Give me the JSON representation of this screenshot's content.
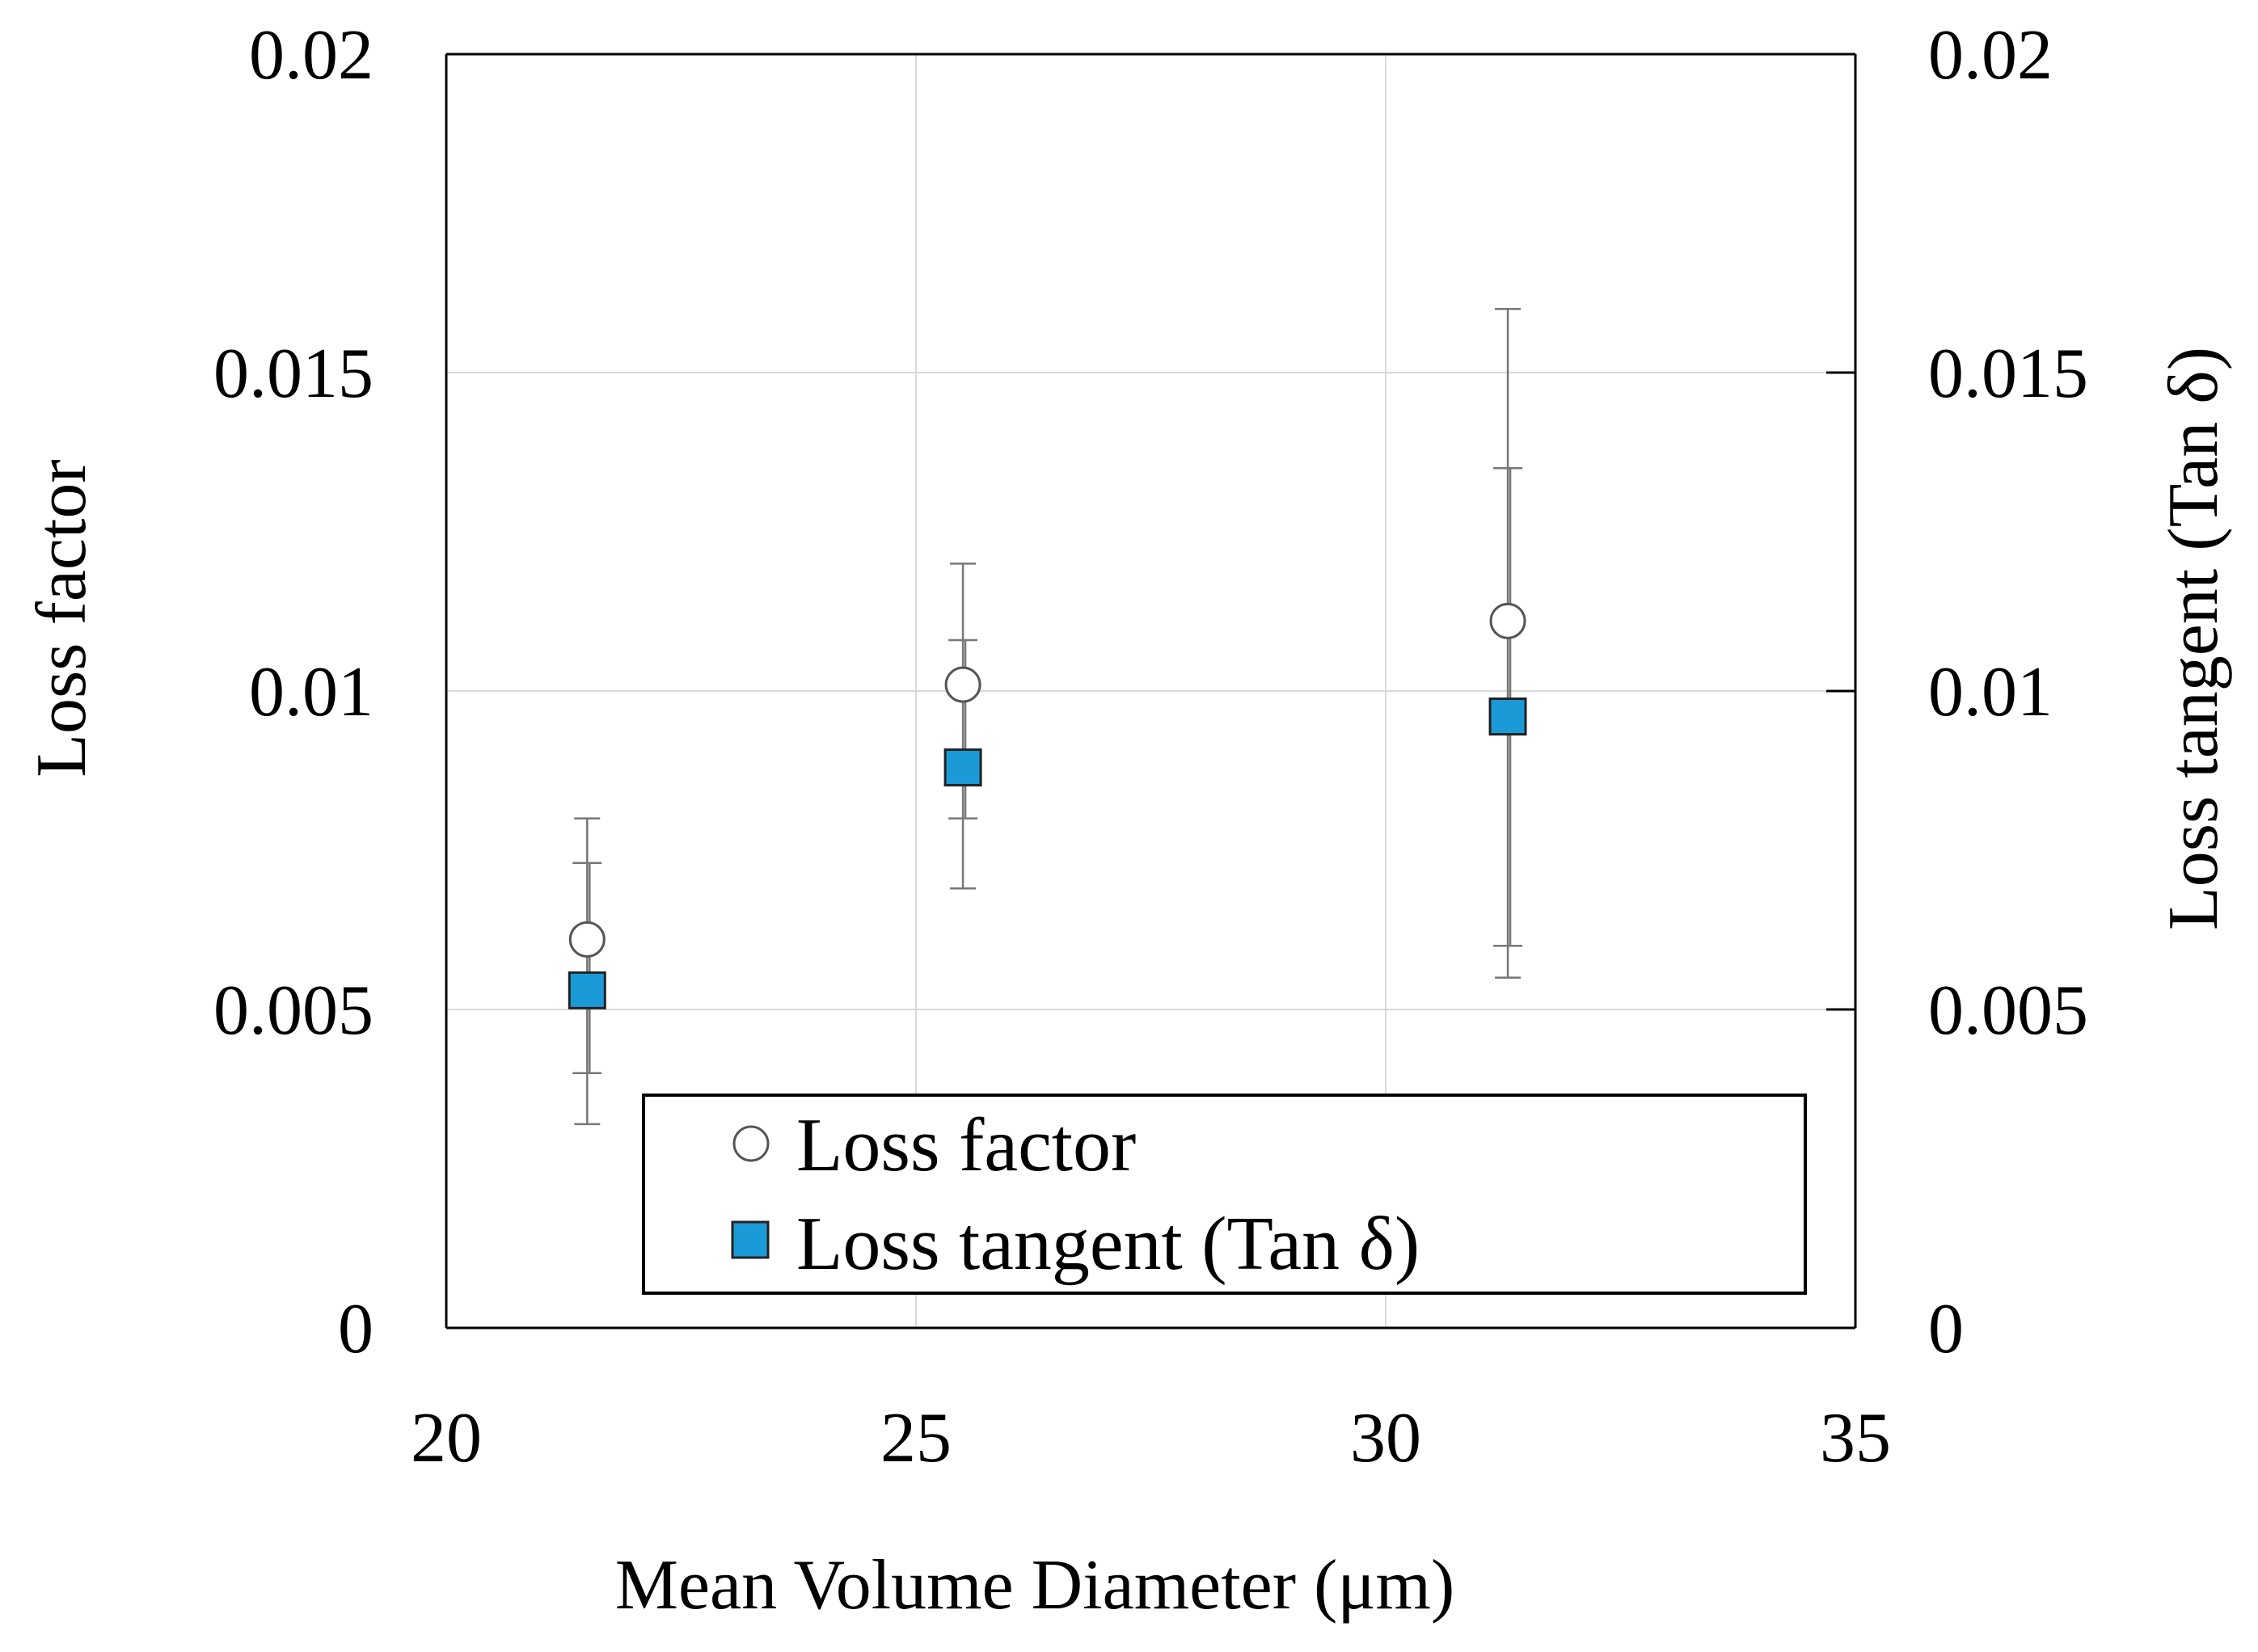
{
  "chart_data": {
    "type": "scatter",
    "title": "",
    "xlabel": "Mean Volume Diameter  (μm)",
    "ylabel": "Loss factor",
    "y2label": "Loss tangent  (Tan δ)",
    "xlim": [
      20,
      35
    ],
    "ylim": [
      0,
      0.02
    ],
    "y2lim": [
      0,
      0.02
    ],
    "xticks": [
      20,
      25,
      30,
      35
    ],
    "xtick_labels": [
      "20",
      "25",
      "30",
      "35"
    ],
    "yticks": [
      0,
      0.005,
      0.01,
      0.015,
      0.02
    ],
    "ytick_labels": [
      "0",
      "0.005",
      "0.01",
      "0.015",
      "0.02"
    ],
    "y2ticks": [
      0,
      0.005,
      0.01,
      0.015,
      0.02
    ],
    "y2tick_labels": [
      "0",
      "0.005",
      "0.01",
      "0.015",
      "0.02"
    ],
    "grid": true,
    "legend_position": "bottom-center",
    "series": [
      {
        "name": "Loss factor",
        "marker": "open-circle",
        "color": "#555555",
        "axis": "left",
        "x": [
          21.5,
          25.5,
          31.3
        ],
        "y": [
          0.0061,
          0.0101,
          0.0111
        ],
        "err_low": [
          0.0032,
          0.0069,
          0.0055
        ],
        "err_high": [
          0.008,
          0.012,
          0.016
        ]
      },
      {
        "name": "Loss tangent (Tan δ)",
        "marker": "filled-square",
        "color": "#1a9ad6",
        "axis": "right",
        "x": [
          21.5,
          25.5,
          31.3
        ],
        "y": [
          0.0053,
          0.0088,
          0.0096
        ],
        "err_low": [
          0.004,
          0.008,
          0.006
        ],
        "err_high": [
          0.0073,
          0.0108,
          0.0135
        ]
      }
    ],
    "legend": {
      "entries": [
        "Loss factor",
        "Loss tangent (Tan δ)"
      ]
    }
  }
}
